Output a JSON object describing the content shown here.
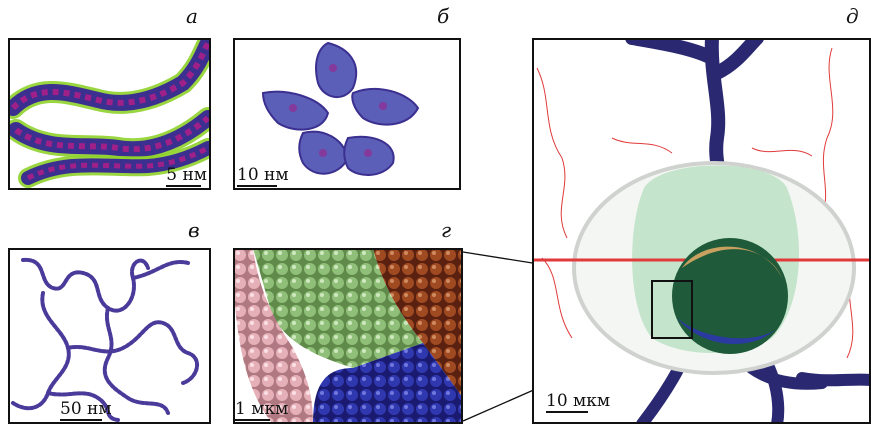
{
  "panels": [
    {
      "id": "a",
      "letter": "а",
      "scale": "5 нм"
    },
    {
      "id": "b",
      "letter": "б",
      "scale": "10 нм"
    },
    {
      "id": "v",
      "letter": "в",
      "scale": "50 нм"
    },
    {
      "id": "g",
      "letter": "г",
      "scale": "1 мкм"
    },
    {
      "id": "d",
      "letter": "д",
      "scale": "10 мкм"
    }
  ],
  "colors": {
    "dna_blue": "#3b2f8f",
    "helix_magenta": "#a0208a",
    "helix_green": "#8fd12a",
    "chromatin_purple": "#4a3a9a",
    "domain_blue": "#2a2fa0",
    "domain_green": "#6fa05a",
    "domain_brown": "#8a3a1a",
    "domain_pink": "#e0a8b0",
    "cell_green": "#b8e0c0",
    "red_lines": "#e03a3a"
  }
}
